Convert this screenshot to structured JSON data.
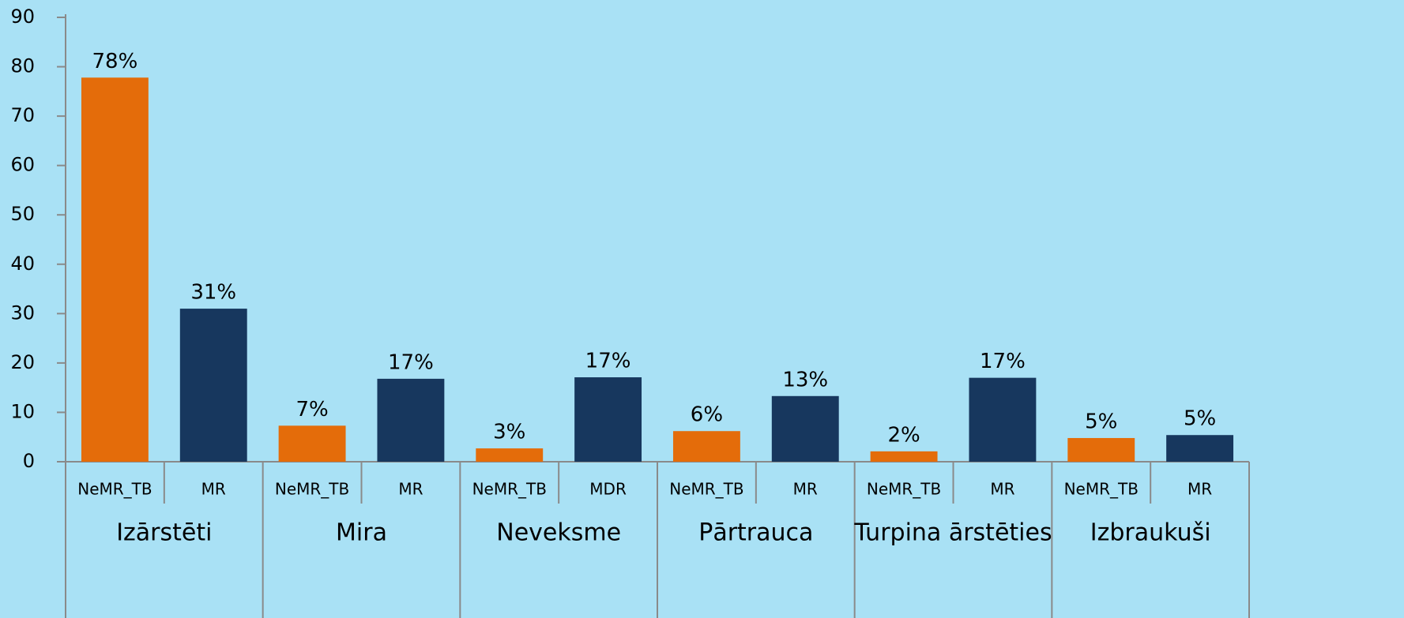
{
  "chart_data": {
    "type": "bar",
    "categories": [
      "NeMR_TB",
      "MR",
      "NeMR_TB",
      "MR",
      "NeMR_TB",
      "MDR",
      "NeMR_TB",
      "MR",
      "NeMR_TB",
      "MR",
      "NeMR_TB",
      "MR"
    ],
    "groups": [
      "Izārstēti",
      "Mira",
      "Neveksme",
      "Pārtrauca",
      "Turpina ārstēties",
      "Izbraukuši"
    ],
    "values": [
      77.8,
      31,
      7.3,
      16.8,
      2.7,
      17.1,
      6.2,
      13.3,
      2.1,
      17,
      4.8,
      5.4
    ],
    "value_labels": [
      "78%",
      "31%",
      "7%",
      "17%",
      "3%",
      "17%",
      "6%",
      "13%",
      "2%",
      "17%",
      "5%",
      "5%"
    ],
    "colors": [
      "#e46c0a",
      "#17375e",
      "#e46c0a",
      "#17375e",
      "#e46c0a",
      "#17375e",
      "#e46c0a",
      "#17375e",
      "#e46c0a",
      "#17375e",
      "#e46c0a",
      "#17375e"
    ],
    "ylim": [
      0,
      90
    ],
    "yticks": [
      0,
      10,
      20,
      30,
      40,
      50,
      60,
      70,
      80,
      90
    ],
    "grid": false
  }
}
